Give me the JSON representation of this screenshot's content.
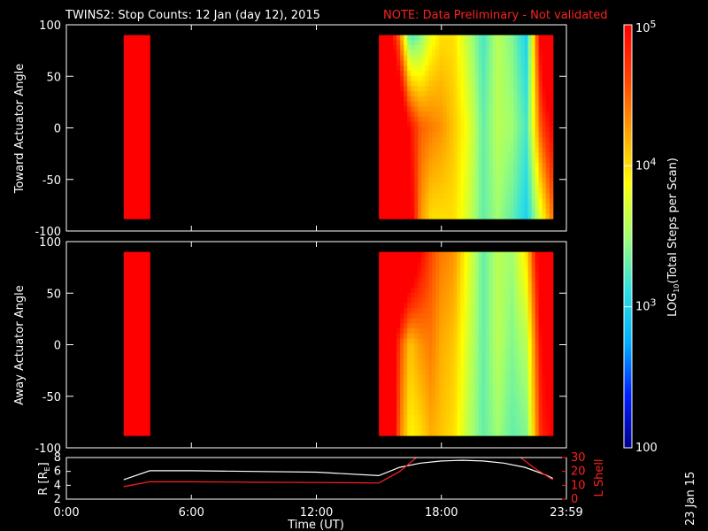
{
  "title": "TWINS2: Stop Counts: 12 Jan (day  12), 2015",
  "note": "NOTE: Data Preliminary - Not validated",
  "date_stamp": "23 Jan 15",
  "colors": {
    "background": "#000000",
    "axes": "#ffffff",
    "note": "#ff2020",
    "r_line": "#ffffff",
    "l_shell_line": "#ff2020"
  },
  "colorbar": {
    "label_parts": [
      "LOG",
      "10",
      "(Total Steps per Scan)"
    ],
    "ticks": [
      {
        "mantissa": "10",
        "exponent": "5",
        "value": 100000
      },
      {
        "mantissa": "10",
        "exponent": "4",
        "value": 10000
      },
      {
        "mantissa": "10",
        "exponent": "3",
        "value": 1000
      },
      {
        "mantissa": "100",
        "exponent": "",
        "value": 100
      }
    ],
    "range": [
      100,
      100000
    ],
    "scale": "log",
    "colormap": [
      "#00008c",
      "#0020ff",
      "#00b0ff",
      "#30e0e0",
      "#a0ff70",
      "#ffff00",
      "#ffa000",
      "#ff4000",
      "#ff0000"
    ]
  },
  "chart_data": [
    {
      "type": "heatmap",
      "ylabel": "Toward Actuator Angle",
      "ylim": [
        -100,
        100
      ],
      "yticks": [
        "100",
        "50",
        "0",
        "-50",
        "-100"
      ],
      "ytick_values": [
        100,
        50,
        0,
        -50,
        -100
      ],
      "xlim": [
        0,
        24
      ],
      "angle_range": [
        -88,
        90
      ],
      "coverage": [
        [
          2.75,
          4.0
        ],
        [
          15.0,
          23.35
        ]
      ],
      "columns": [
        {
          "t": 2.8,
          "top": 5.8,
          "mid": 6.0,
          "bot": 5.9
        },
        {
          "t": 3.2,
          "top": 5.7,
          "mid": 5.9,
          "bot": 5.8
        },
        {
          "t": 3.6,
          "top": 5.6,
          "mid": 5.9,
          "bot": 5.7
        },
        {
          "t": 3.95,
          "top": 5.6,
          "mid": 5.8,
          "bot": 5.7
        },
        {
          "t": 15.1,
          "top": 5.9,
          "mid": 6.2,
          "bot": 6.0
        },
        {
          "t": 15.5,
          "top": 5.2,
          "mid": 6.0,
          "bot": 6.1
        },
        {
          "t": 16.0,
          "top": 4.4,
          "mid": 5.6,
          "bot": 5.9
        },
        {
          "t": 16.5,
          "top": 3.2,
          "mid": 4.9,
          "bot": 5.2
        },
        {
          "t": 17.0,
          "top": 3.4,
          "mid": 4.5,
          "bot": 4.3
        },
        {
          "t": 17.5,
          "top": 3.8,
          "mid": 4.4,
          "bot": 4.0
        },
        {
          "t": 18.0,
          "top": 4.0,
          "mid": 4.3,
          "bot": 4.0
        },
        {
          "t": 18.6,
          "top": 4.0,
          "mid": 4.1,
          "bot": 4.0
        },
        {
          "t": 19.3,
          "top": 3.6,
          "mid": 3.8,
          "bot": 3.7
        },
        {
          "t": 20.0,
          "top": 3.2,
          "mid": 3.3,
          "bot": 3.3
        },
        {
          "t": 20.7,
          "top": 3.6,
          "mid": 3.6,
          "bot": 3.5
        },
        {
          "t": 21.4,
          "top": 3.4,
          "mid": 3.5,
          "bot": 3.3
        },
        {
          "t": 22.1,
          "top": 3.0,
          "mid": 3.2,
          "bot": 3.0
        },
        {
          "t": 22.8,
          "top": 5.2,
          "mid": 4.6,
          "bot": 3.8
        },
        {
          "t": 23.3,
          "top": 5.8,
          "mid": 5.0,
          "bot": 4.4
        }
      ]
    },
    {
      "type": "heatmap",
      "ylabel": "Away Actuator Angle",
      "ylim": [
        -100,
        100
      ],
      "yticks": [
        "100",
        "50",
        "0",
        "-50",
        "-100"
      ],
      "ytick_values": [
        100,
        50,
        0,
        -50,
        -100
      ],
      "xlim": [
        0,
        24
      ],
      "angle_range": [
        -88,
        90
      ],
      "coverage": [
        [
          2.75,
          4.0
        ],
        [
          15.0,
          23.35
        ]
      ],
      "columns": [
        {
          "t": 2.8,
          "top": 6.0,
          "mid": 5.9,
          "bot": 5.9
        },
        {
          "t": 3.2,
          "top": 5.8,
          "mid": 5.8,
          "bot": 5.7
        },
        {
          "t": 3.6,
          "top": 5.7,
          "mid": 5.6,
          "bot": 5.4
        },
        {
          "t": 3.95,
          "top": 5.7,
          "mid": 5.6,
          "bot": 5.5
        },
        {
          "t": 15.1,
          "top": 6.0,
          "mid": 5.9,
          "bot": 5.9
        },
        {
          "t": 15.5,
          "top": 6.1,
          "mid": 5.8,
          "bot": 5.7
        },
        {
          "t": 16.0,
          "top": 6.0,
          "mid": 4.6,
          "bot": 4.4
        },
        {
          "t": 16.5,
          "top": 5.6,
          "mid": 4.1,
          "bot": 3.9
        },
        {
          "t": 17.0,
          "top": 5.0,
          "mid": 4.3,
          "bot": 4.0
        },
        {
          "t": 17.5,
          "top": 4.6,
          "mid": 4.4,
          "bot": 4.2
        },
        {
          "t": 18.0,
          "top": 4.4,
          "mid": 4.2,
          "bot": 4.1
        },
        {
          "t": 18.6,
          "top": 4.3,
          "mid": 4.1,
          "bot": 4.0
        },
        {
          "t": 19.3,
          "top": 3.8,
          "mid": 3.7,
          "bot": 3.6
        },
        {
          "t": 20.0,
          "top": 3.3,
          "mid": 3.3,
          "bot": 3.3
        },
        {
          "t": 20.7,
          "top": 3.6,
          "mid": 3.6,
          "bot": 3.5
        },
        {
          "t": 21.4,
          "top": 3.5,
          "mid": 3.4,
          "bot": 3.3
        },
        {
          "t": 22.1,
          "top": 4.0,
          "mid": 3.6,
          "bot": 3.4
        },
        {
          "t": 22.8,
          "top": 5.4,
          "mid": 5.0,
          "bot": 4.8
        },
        {
          "t": 23.3,
          "top": 5.6,
          "mid": 5.2,
          "bot": 5.0
        }
      ]
    },
    {
      "type": "line",
      "xlabel": "Time (UT)",
      "xlim": [
        0,
        24
      ],
      "xticks": [
        "0:00",
        "6:00",
        "12:00",
        "18:00",
        "23:59"
      ],
      "xtick_values": [
        0,
        6,
        12,
        18,
        24
      ],
      "ylabel_left_parts": [
        "R [R",
        "E",
        "]"
      ],
      "ylim_left": [
        2,
        8
      ],
      "yticks_left": [
        "8",
        "6",
        "4",
        "2"
      ],
      "ytick_values_left": [
        8,
        6,
        4,
        2
      ],
      "ylabel_right": "L Shell",
      "ylim_right": [
        0,
        30
      ],
      "yticks_right": [
        "30",
        "20",
        "10",
        "0"
      ],
      "ytick_values_right": [
        30,
        20,
        10,
        0
      ],
      "series": [
        {
          "axis": "left",
          "color": "#ffffff",
          "x": [
            2.75,
            4.0,
            6.0,
            9.0,
            12.0,
            15.0,
            16.0,
            17.0,
            18.0,
            19.0,
            20.0,
            21.0,
            22.0,
            23.0,
            23.35
          ],
          "y": [
            4.8,
            6.1,
            6.1,
            6.0,
            5.9,
            5.4,
            6.6,
            7.2,
            7.5,
            7.6,
            7.5,
            7.2,
            6.6,
            5.5,
            5.0
          ]
        },
        {
          "axis": "right",
          "color": "#ff2020",
          "x": [
            2.75,
            4.0,
            6.0,
            9.0,
            12.0,
            14.0,
            15.0,
            16.0,
            16.8
          ],
          "y": [
            9.0,
            12.5,
            12.5,
            12.2,
            12.0,
            11.8,
            11.6,
            20.0,
            30.0
          ]
        },
        {
          "axis": "right",
          "color": "#ff2020",
          "x": [
            21.8,
            22.5,
            23.35
          ],
          "y": [
            30.0,
            22.0,
            14.0
          ]
        }
      ]
    }
  ]
}
